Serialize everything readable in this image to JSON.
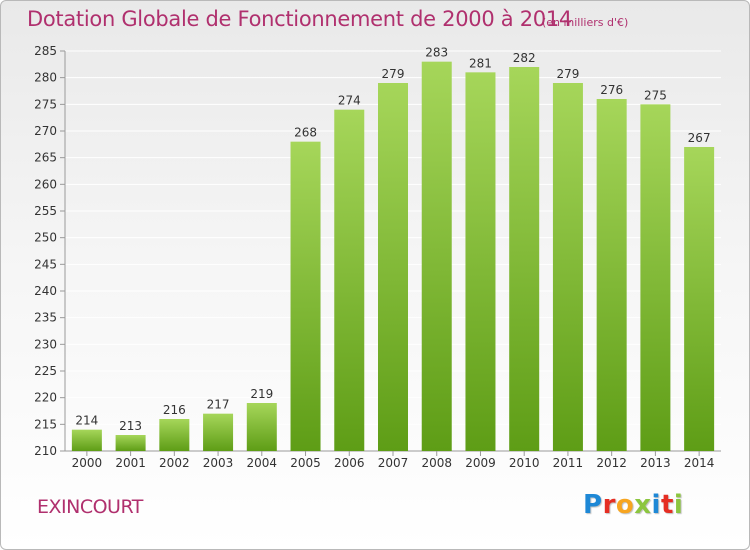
{
  "header": {
    "title": "Dotation Globale de Fonctionnement de 2000 à 2014",
    "unit": "(en milliers d'€)"
  },
  "footer": {
    "commune": "EXINCOURT",
    "logo_letters": [
      "P",
      "r",
      "o",
      "x",
      "i",
      "t",
      "i"
    ],
    "logo_colors": [
      "#1e88d6",
      "#e52e23",
      "#f7a520",
      "#8cc63f",
      "#1e88d6",
      "#e52e23",
      "#8cc63f"
    ]
  },
  "colors": {
    "title": "#b0306e",
    "bar_top": "#a6d65a",
    "bar_bottom": "#5e9d16",
    "grid": "#ffffff",
    "axis": "#9a9a9a",
    "text": "#333333"
  },
  "chart_data": {
    "type": "bar",
    "title": "Dotation Globale de Fonctionnement de 2000 à 2014",
    "subtitle": "(en milliers d'€)",
    "xlabel": "",
    "ylabel": "",
    "categories": [
      "2000",
      "2001",
      "2002",
      "2003",
      "2004",
      "2005",
      "2006",
      "2007",
      "2008",
      "2009",
      "2010",
      "2011",
      "2012",
      "2013",
      "2014"
    ],
    "values": [
      214,
      213,
      216,
      217,
      219,
      268,
      274,
      279,
      283,
      281,
      282,
      279,
      276,
      275,
      267
    ],
    "ylim": [
      210,
      285
    ],
    "yticks": [
      210,
      215,
      220,
      225,
      230,
      235,
      240,
      245,
      250,
      255,
      260,
      265,
      270,
      275,
      280,
      285
    ],
    "grid": true,
    "data_labels": true
  }
}
